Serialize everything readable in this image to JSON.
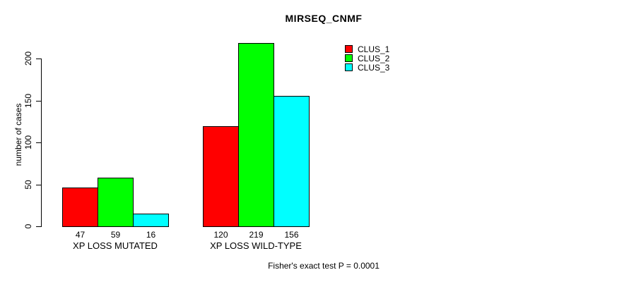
{
  "chart_data": {
    "type": "bar",
    "title": "MIRSEQ_CNMF",
    "ylabel": "number of cases",
    "xlabel": "",
    "categories": [
      "XP LOSS MUTATED",
      "XP LOSS WILD-TYPE"
    ],
    "series": [
      {
        "name": "CLUS_1",
        "color": "#ff0000",
        "values": [
          47,
          120
        ]
      },
      {
        "name": "CLUS_2",
        "color": "#00ff00",
        "values": [
          59,
          219
        ]
      },
      {
        "name": "CLUS_3",
        "color": "#00ffff",
        "values": [
          16,
          156
        ]
      }
    ],
    "bar_value_labels": [
      [
        47,
        59,
        16
      ],
      [
        120,
        219,
        156
      ]
    ],
    "y_ticks": [
      0,
      50,
      100,
      150,
      200
    ],
    "ylim": [
      0,
      220
    ],
    "grid": false,
    "legend_position": "top-right",
    "bar_border_color": "#000000",
    "caption": "Fisher's exact test P = 0.0001"
  }
}
